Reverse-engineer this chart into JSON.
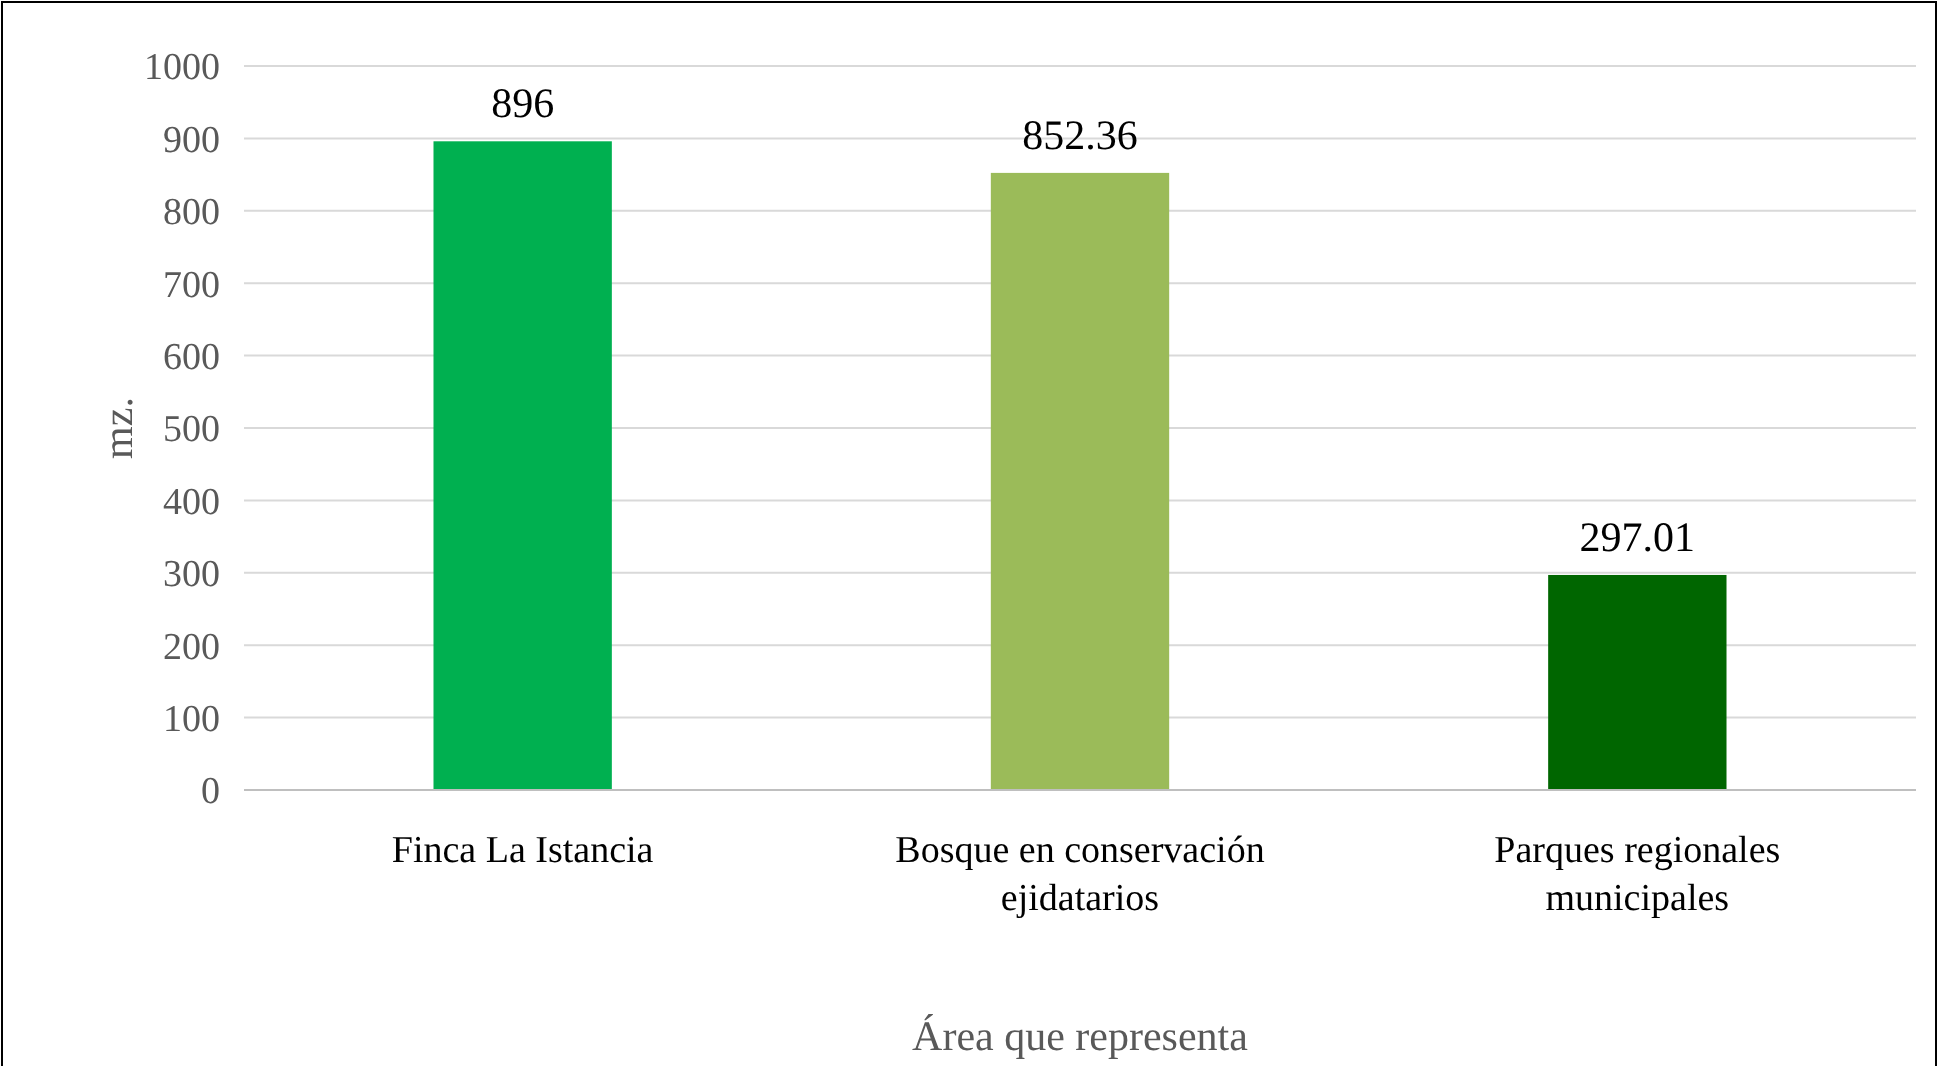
{
  "chart_data": {
    "type": "bar",
    "xlabel": "Área que representa",
    "ylabel": "mz.",
    "categories": [
      "Finca La Istancia",
      "Bosque en conservación ejidatarios",
      "Parques regionales municipales"
    ],
    "values": [
      896,
      852.36,
      297.01
    ],
    "colors": [
      "#00b050",
      "#9bbb59",
      "#006600"
    ],
    "ylim": [
      0,
      1000
    ],
    "yticks": [
      0,
      100,
      200,
      300,
      400,
      500,
      600,
      700,
      800,
      900,
      1000
    ],
    "grid": "y",
    "data_labels": true
  }
}
